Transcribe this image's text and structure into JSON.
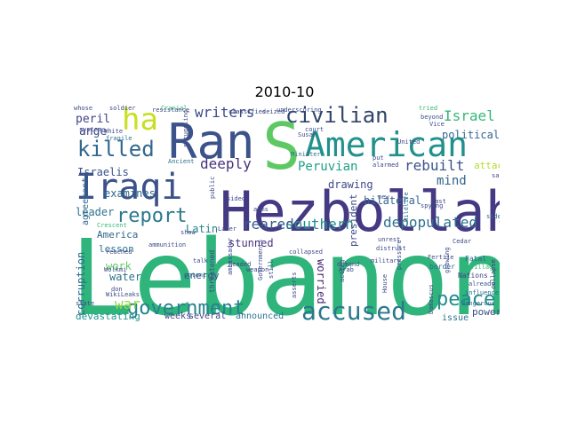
{
  "title": "2010-10",
  "words": [
    {
      "text": "Lebanon",
      "color": "#2fb47c"
    },
    {
      "text": "Hezbollah",
      "color": "#443983"
    },
    {
      "text": "Ran",
      "color": "#3b528b"
    },
    {
      "text": "S",
      "color": "#5ec962"
    },
    {
      "text": "American",
      "color": "#21918c"
    },
    {
      "text": "Iraqi",
      "color": "#3b528b"
    },
    {
      "text": "ha",
      "color": "#c8e020"
    },
    {
      "text": "civilian",
      "color": "#31446b"
    },
    {
      "text": "killed",
      "color": "#31688e"
    },
    {
      "text": "report",
      "color": "#2a788e"
    },
    {
      "text": "government",
      "color": "#26828e"
    },
    {
      "text": "accused",
      "color": "#2a788e"
    },
    {
      "text": "peace",
      "color": "#228c8d"
    },
    {
      "text": "writers",
      "color": "#3e4a89"
    },
    {
      "text": "Israel",
      "color": "#35b779"
    },
    {
      "text": "deeply",
      "color": "#46327e"
    },
    {
      "text": "Peruvian",
      "color": "#1fa088"
    },
    {
      "text": "rebuilt",
      "color": "#3b528b"
    },
    {
      "text": "depopulated",
      "color": "#2c728e"
    },
    {
      "text": "southern",
      "color": "#21918c"
    },
    {
      "text": "reared",
      "color": "#365c8d"
    },
    {
      "text": "war",
      "color": "#90d743"
    },
    {
      "text": "mind",
      "color": "#32648e"
    },
    {
      "text": "political",
      "color": "#31688e"
    },
    {
      "text": "attack",
      "color": "#b5de2b"
    },
    {
      "text": "Israelis",
      "color": "#3b528b"
    },
    {
      "text": "examines",
      "color": "#31688e"
    },
    {
      "text": "leader",
      "color": "#2c728e"
    },
    {
      "text": "peril",
      "color": "#414487"
    },
    {
      "text": "ange",
      "color": "#3e4a89"
    },
    {
      "text": "stunned",
      "color": "#46327e"
    },
    {
      "text": "drawing",
      "color": "#3e4a89"
    },
    {
      "text": "bilateral",
      "color": "#31688e"
    },
    {
      "text": "worried",
      "color": "#482878"
    },
    {
      "text": "president",
      "color": "#3e4a89"
    },
    {
      "text": "Latin",
      "color": "#26828e"
    },
    {
      "text": "America",
      "color": "#32648e"
    },
    {
      "text": "lesson",
      "color": "#2c728e"
    },
    {
      "text": "work",
      "color": "#5ec962"
    },
    {
      "text": "water",
      "color": "#2c728e"
    },
    {
      "text": "energy",
      "color": "#3b528b"
    },
    {
      "text": "corruption",
      "color": "#31688e"
    },
    {
      "text": "agreement",
      "color": "#31688e"
    },
    {
      "text": "devastating",
      "color": "#21918c"
    },
    {
      "text": "weeks",
      "color": "#414487"
    },
    {
      "text": "several",
      "color": "#414487"
    },
    {
      "text": "announced",
      "color": "#2c728e"
    },
    {
      "text": "power",
      "color": "#3e4a89"
    },
    {
      "text": "issue",
      "color": "#2c728e"
    },
    {
      "text": "Nations",
      "color": "#414487"
    },
    {
      "text": "border",
      "color": "#31688e"
    },
    {
      "text": "Fatal",
      "color": "#31688e"
    },
    {
      "text": "Fertile",
      "color": "#3e4a89"
    },
    {
      "text": "village",
      "color": "#35b779"
    },
    {
      "text": "collapse",
      "color": "#443983"
    },
    {
      "text": "dangerous",
      "color": "#31688e"
    },
    {
      "text": "already",
      "color": "#3b528b"
    },
    {
      "text": "influence",
      "color": "#2c728e"
    },
    {
      "text": "Intelligence",
      "color": "#5ec962"
    },
    {
      "text": "side",
      "color": "#31688e"
    },
    {
      "text": "said",
      "color": "#414487"
    },
    {
      "text": "beyond",
      "color": "#3b528b"
    },
    {
      "text": "Vice",
      "color": "#3e4a89"
    },
    {
      "text": "United",
      "color": "#414487"
    },
    {
      "text": "classified",
      "color": "#3e4a89"
    },
    {
      "text": "seized",
      "color": "#3e4a89"
    },
    {
      "text": "Cranial",
      "color": "#35b779"
    },
    {
      "text": "soldier",
      "color": "#3e4a89"
    },
    {
      "text": "whose",
      "color": "#3e4a89"
    },
    {
      "text": "system",
      "color": "#414487"
    },
    {
      "text": "White",
      "color": "#3e4a89"
    },
    {
      "text": "fragile",
      "color": "#2c728e"
    },
    {
      "text": "struggling",
      "color": "#3e4a89"
    },
    {
      "text": "Minister",
      "color": "#2c728e"
    },
    {
      "text": "court",
      "color": "#3e4a89"
    },
    {
      "text": "Susan",
      "color": "#3e4a89"
    },
    {
      "text": "Ancient",
      "color": "#2c728e"
    },
    {
      "text": "tried",
      "color": "#35b779"
    },
    {
      "text": "Wildlife",
      "color": "#2c728e"
    },
    {
      "text": "spying",
      "color": "#3e4a89"
    },
    {
      "text": "Last",
      "color": "#3e4a89"
    },
    {
      "text": "new",
      "color": "#3e4a89"
    },
    {
      "text": "put",
      "color": "#3e4a89"
    },
    {
      "text": "alarmed",
      "color": "#3e4a89"
    },
    {
      "text": "military",
      "color": "#3e4a89"
    },
    {
      "text": "unrest",
      "color": "#3e4a89"
    },
    {
      "text": "distrust",
      "color": "#3e4a89"
    },
    {
      "text": "House",
      "color": "#3e4a89"
    },
    {
      "text": "pressure",
      "color": "#3e4a89"
    },
    {
      "text": "Later",
      "color": "#3e4a89"
    },
    {
      "text": "weapon",
      "color": "#3e4a89"
    },
    {
      "text": "collapsed",
      "color": "#3e4a89"
    },
    {
      "text": "threatened",
      "color": "#3e4a89"
    },
    {
      "text": "ambassador",
      "color": "#3e4a89"
    },
    {
      "text": "potent",
      "color": "#2c728e"
    },
    {
      "text": "talk",
      "color": "#3e4a89"
    },
    {
      "text": "Crescent",
      "color": "#35b779"
    },
    {
      "text": "reached",
      "color": "#3e4a89"
    },
    {
      "text": "Wolkmi",
      "color": "#3e4a89"
    },
    {
      "text": "WikiLeaks",
      "color": "#3e4a89"
    },
    {
      "text": "state",
      "color": "#3e4a89"
    },
    {
      "text": "don",
      "color": "#3e4a89"
    },
    {
      "text": "show",
      "color": "#3e4a89"
    },
    {
      "text": "Governments",
      "color": "#3e4a89"
    },
    {
      "text": "Cedar",
      "color": "#3e4a89"
    },
    {
      "text": "asserts",
      "color": "#3e4a89"
    },
    {
      "text": "Damascus",
      "color": "#3e4a89"
    },
    {
      "text": "growing",
      "color": "#3e4a89"
    },
    {
      "text": "demand",
      "color": "#3e4a89"
    },
    {
      "text": "acting",
      "color": "#3e4a89"
    },
    {
      "text": "sided",
      "color": "#3e4a89"
    },
    {
      "text": "still",
      "color": "#3e4a89"
    },
    {
      "text": "underscoring",
      "color": "#3e4a89"
    },
    {
      "text": "resistance",
      "color": "#3e4a89"
    },
    {
      "text": "public",
      "color": "#3e4a89"
    },
    {
      "text": "ammunition",
      "color": "#3e4a89"
    },
    {
      "text": "headed",
      "color": "#3e4a89"
    },
    {
      "text": "Arab",
      "color": "#3e4a89"
    },
    {
      "text": "arms",
      "color": "#3e4a89"
    }
  ]
}
